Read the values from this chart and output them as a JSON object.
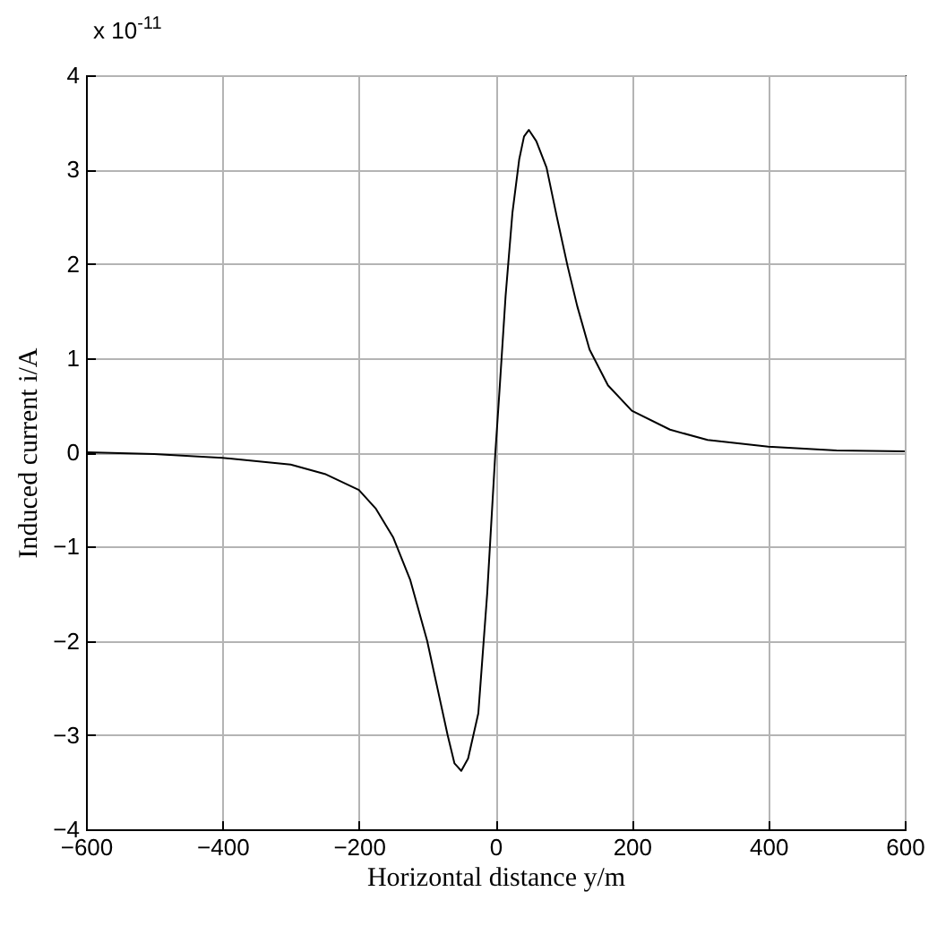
{
  "chart_data": {
    "type": "line",
    "xlabel": "Horizontal distance y/m",
    "ylabel": "Induced current i/A",
    "annotations": [
      "x 10$^{-11}$"
    ],
    "x": [
      -600,
      -500,
      -400,
      -300,
      -250,
      -200,
      -175,
      -150,
      -125,
      -100,
      -85,
      -70,
      -60,
      -50,
      -40,
      -25,
      -12,
      0,
      6,
      15,
      25,
      35,
      42,
      49,
      60,
      75,
      90,
      106,
      120,
      138,
      165,
      200,
      256,
      311,
      400,
      500,
      600
    ],
    "series": [
      {
        "color": "#000000",
        "values": [
          0,
          -0.02,
          -0.06,
          -0.13,
          -0.23,
          -0.4,
          -0.6,
          -0.9,
          -1.35,
          -2.0,
          -2.5,
          -3.0,
          -3.3,
          -3.38,
          -3.25,
          -2.77,
          -1.5,
          0,
          0.65,
          1.66,
          2.54,
          3.11,
          3.35,
          3.42,
          3.3,
          3.02,
          2.5,
          1.97,
          1.55,
          1.09,
          0.71,
          0.44,
          0.24,
          0.13,
          0.06,
          0.02,
          0.01
        ]
      }
    ],
    "xlim": [
      -600,
      600
    ],
    "xticks": [
      -600,
      -400,
      -200,
      0,
      200,
      400,
      600
    ],
    "ylim": [
      -4,
      4
    ],
    "yticks": [
      -4,
      -3,
      -2,
      -1,
      0,
      1,
      2,
      3,
      4
    ],
    "grid": true,
    "marker": "none",
    "line_style": "solid"
  }
}
